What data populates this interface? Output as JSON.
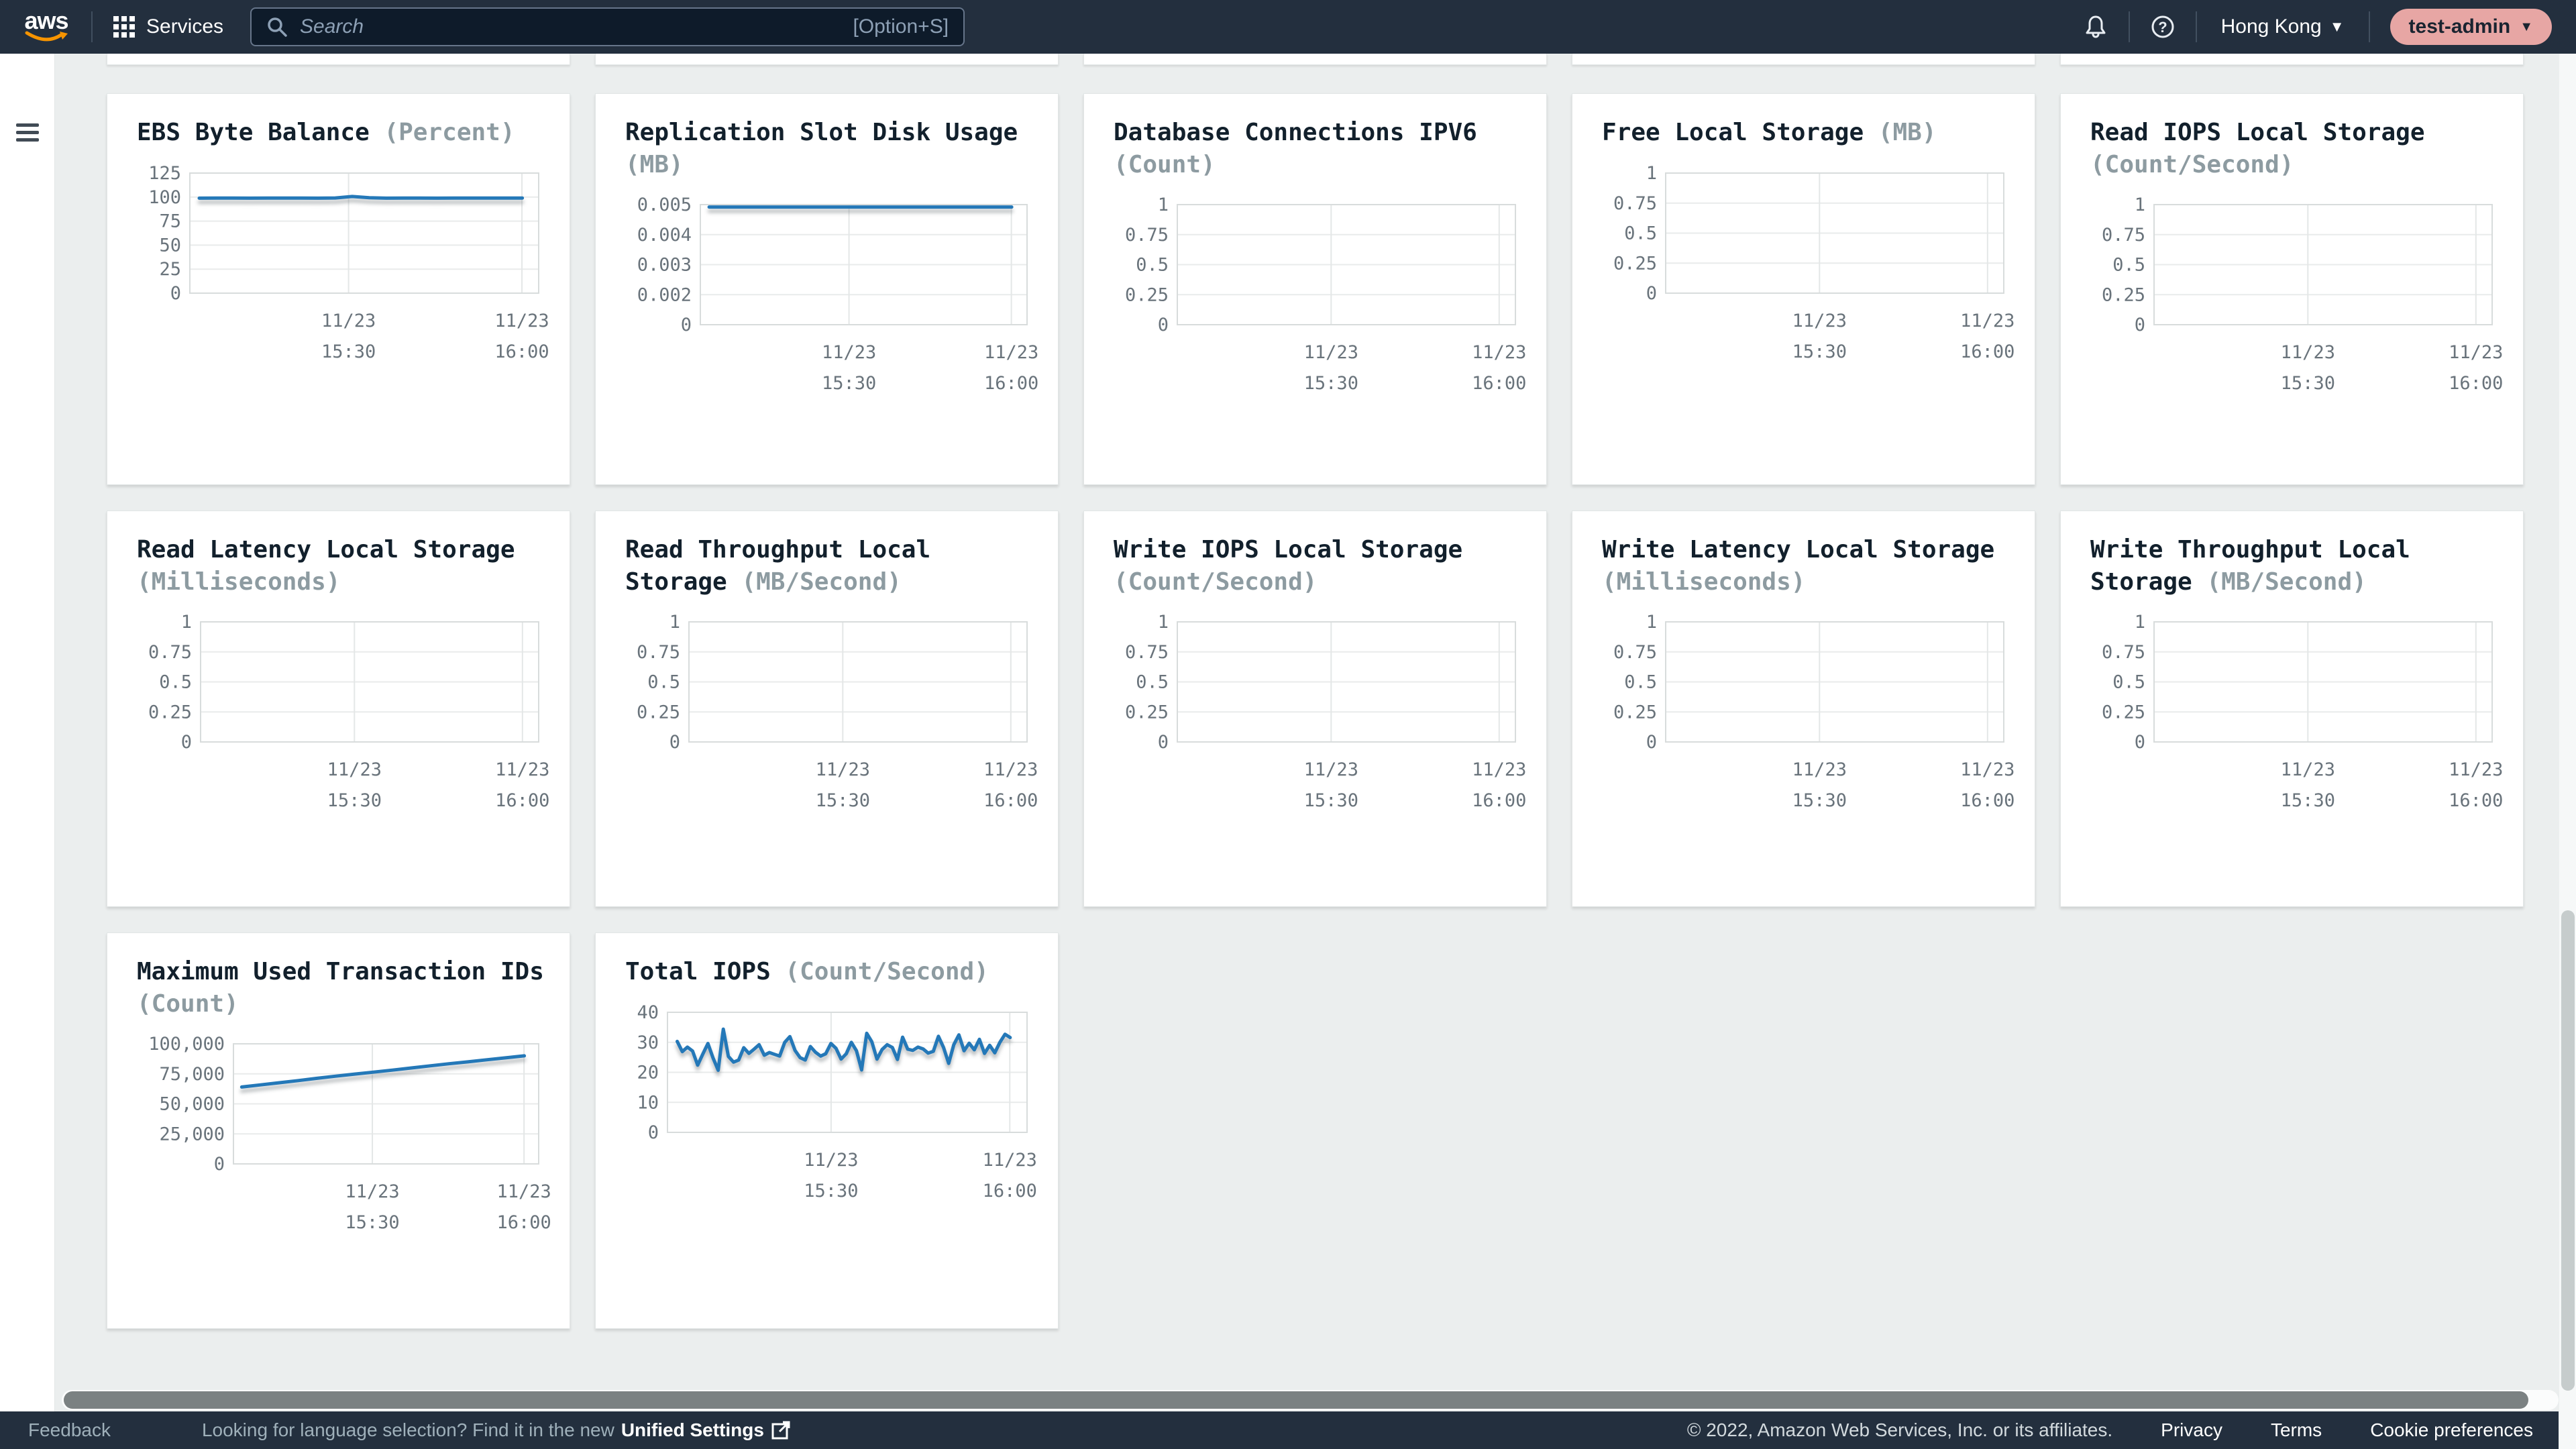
{
  "topbar": {
    "logo": "aws",
    "services_label": "Services",
    "search_placeholder": "Search",
    "search_shortcut": "[Option+S]",
    "region": "Hong Kong",
    "account": "test-admin"
  },
  "footer": {
    "feedback": "Feedback",
    "language_text": "Looking for language selection? Find it in the new",
    "unified_settings": "Unified Settings",
    "copyright": "© 2022, Amazon Web Services, Inc. or its affiliates.",
    "links": {
      "privacy": "Privacy",
      "terms": "Terms",
      "cookies": "Cookie preferences"
    }
  },
  "colors": {
    "topbar_bg": "#232f3e",
    "accent_line": "#2478b8",
    "account_pill": "#e7a6a4",
    "page_bg": "#ebeeee",
    "card_bg": "#ffffff",
    "axis_text": "#69737b",
    "unit_text": "#8d9ba1"
  },
  "chart_data": [
    {
      "type": "line",
      "title": "EBS Byte Balance",
      "unit": "(Percent)",
      "y_ticks": [
        "125",
        "100",
        "75",
        "50",
        "25",
        "0"
      ],
      "ylim": [
        0,
        125
      ],
      "x_ticks": [
        [
          "11/23",
          "15:30"
        ],
        [
          "11/23",
          "16:00"
        ]
      ],
      "values": [
        98.9,
        99,
        99,
        98.9,
        99,
        99,
        99,
        98.9,
        99.1,
        100.6,
        99.4,
        98.9,
        99,
        99,
        98.9,
        99,
        99,
        99,
        99,
        99
      ]
    },
    {
      "type": "line",
      "title": "Replication Slot Disk Usage",
      "unit": "(MB)",
      "y_ticks": [
        "0.005",
        "0.004",
        "0.003",
        "0.002",
        "0"
      ],
      "ylim": [
        0,
        0.005
      ],
      "x_ticks": [
        [
          "11/23",
          "15:30"
        ],
        [
          "11/23",
          "16:00"
        ]
      ],
      "values": [
        0.0049,
        0.0049
      ]
    },
    {
      "type": "line",
      "title": "Database Connections IPV6",
      "unit": "(Count)",
      "y_ticks": [
        "1",
        "0.75",
        "0.5",
        "0.25",
        "0"
      ],
      "ylim": [
        0,
        1
      ],
      "x_ticks": [
        [
          "11/23",
          "15:30"
        ],
        [
          "11/23",
          "16:00"
        ]
      ],
      "values": []
    },
    {
      "type": "line",
      "title": "Free Local Storage",
      "unit": "(MB)",
      "y_ticks": [
        "1",
        "0.75",
        "0.5",
        "0.25",
        "0"
      ],
      "ylim": [
        0,
        1
      ],
      "x_ticks": [
        [
          "11/23",
          "15:30"
        ],
        [
          "11/23",
          "16:00"
        ]
      ],
      "values": []
    },
    {
      "type": "line",
      "title": "Read IOPS Local Storage",
      "unit": "(Count/Second)",
      "y_ticks": [
        "1",
        "0.75",
        "0.5",
        "0.25",
        "0"
      ],
      "ylim": [
        0,
        1
      ],
      "x_ticks": [
        [
          "11/23",
          "15:30"
        ],
        [
          "11/23",
          "16:00"
        ]
      ],
      "values": []
    },
    {
      "type": "line",
      "title": "Read Latency Local Storage",
      "unit": "(Milliseconds)",
      "y_ticks": [
        "1",
        "0.75",
        "0.5",
        "0.25",
        "0"
      ],
      "ylim": [
        0,
        1
      ],
      "x_ticks": [
        [
          "11/23",
          "15:30"
        ],
        [
          "11/23",
          "16:00"
        ]
      ],
      "values": []
    },
    {
      "type": "line",
      "title": "Read Throughput Local Storage",
      "unit": "(MB/Second)",
      "y_ticks": [
        "1",
        "0.75",
        "0.5",
        "0.25",
        "0"
      ],
      "ylim": [
        0,
        1
      ],
      "x_ticks": [
        [
          "11/23",
          "15:30"
        ],
        [
          "11/23",
          "16:00"
        ]
      ],
      "values": []
    },
    {
      "type": "line",
      "title": "Write IOPS Local Storage",
      "unit": "(Count/Second)",
      "y_ticks": [
        "1",
        "0.75",
        "0.5",
        "0.25",
        "0"
      ],
      "ylim": [
        0,
        1
      ],
      "x_ticks": [
        [
          "11/23",
          "15:30"
        ],
        [
          "11/23",
          "16:00"
        ]
      ],
      "values": []
    },
    {
      "type": "line",
      "title": "Write Latency Local Storage",
      "unit": "(Milliseconds)",
      "y_ticks": [
        "1",
        "0.75",
        "0.5",
        "0.25",
        "0"
      ],
      "ylim": [
        0,
        1
      ],
      "x_ticks": [
        [
          "11/23",
          "15:30"
        ],
        [
          "11/23",
          "16:00"
        ]
      ],
      "values": []
    },
    {
      "type": "line",
      "title": "Write Throughput Local Storage",
      "unit": "(MB/Second)",
      "y_ticks": [
        "1",
        "0.75",
        "0.5",
        "0.25",
        "0"
      ],
      "ylim": [
        0,
        1
      ],
      "x_ticks": [
        [
          "11/23",
          "15:30"
        ],
        [
          "11/23",
          "16:00"
        ]
      ],
      "values": []
    },
    {
      "type": "line",
      "title": "Maximum Used Transaction IDs",
      "unit": "(Count)",
      "y_ticks": [
        "100,000",
        "75,000",
        "50,000",
        "25,000",
        "0"
      ],
      "ylim": [
        0,
        100000
      ],
      "x_ticks": [
        [
          "11/23",
          "15:30"
        ],
        [
          "11/23",
          "16:00"
        ]
      ],
      "values": [
        64000,
        65800,
        67600,
        69400,
        71300,
        73100,
        74800,
        76400,
        78100,
        79900,
        81700,
        83400,
        85000,
        86700,
        88300,
        90000
      ]
    },
    {
      "type": "line",
      "title": "Total IOPS",
      "unit": "(Count/Second)",
      "y_ticks": [
        "40",
        "30",
        "20",
        "10",
        "0"
      ],
      "ylim": [
        0,
        40
      ],
      "x_ticks": [
        [
          "11/23",
          "15:30"
        ],
        [
          "11/23",
          "16:00"
        ]
      ],
      "values": [
        30.3,
        26.9,
        28.4,
        27.1,
        22.4,
        26.1,
        29.6,
        24.8,
        20.7,
        34.4,
        25.3,
        23.4,
        24.1,
        28.2,
        26.3,
        27.7,
        29.2,
        25.7,
        26.6,
        26.0,
        25.4,
        30.0,
        31.9,
        27.3,
        24.9,
        24.1,
        28.6,
        26.7,
        25.4,
        26.2,
        29.6,
        28.0,
        24.4,
        26.2,
        30.0,
        27.2,
        20.8,
        33.0,
        30.2,
        24.4,
        27.6,
        29.2,
        28.3,
        24.3,
        31.7,
        27.7,
        27.3,
        28.4,
        27.8,
        26.4,
        27.0,
        32.0,
        28.3,
        23.0,
        29.2,
        32.5,
        27.2,
        29.7,
        27.5,
        31.0,
        26.3,
        29.0,
        26.5,
        30.0,
        32.7,
        31.6
      ]
    }
  ]
}
